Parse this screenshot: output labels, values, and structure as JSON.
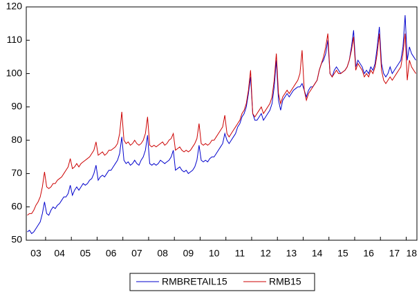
{
  "chart_data": {
    "type": "line",
    "categories": [
      null,
      null,
      null,
      null,
      "03",
      null,
      null,
      null,
      null,
      null,
      null,
      null,
      null,
      null,
      null,
      "04",
      null,
      null,
      null,
      null,
      null,
      null,
      null,
      null,
      null,
      null,
      null,
      "05",
      null,
      null,
      null,
      null,
      null,
      null,
      null,
      null,
      null,
      null,
      null,
      "06",
      null,
      null,
      null,
      null,
      null,
      null,
      null,
      null,
      null,
      null,
      null,
      "07",
      null,
      null,
      null,
      null,
      null,
      null,
      null,
      null,
      null,
      null,
      null,
      "08",
      null,
      null,
      null,
      null,
      null,
      null,
      null,
      null,
      null,
      null,
      null,
      "09",
      null,
      null,
      null,
      null,
      null,
      null,
      null,
      null,
      null,
      null,
      null,
      "10",
      null,
      null,
      null,
      null,
      null,
      null,
      null,
      null,
      null,
      null,
      null,
      "11",
      null,
      null,
      null,
      null,
      null,
      null,
      null,
      null,
      null,
      null,
      null,
      "12",
      null,
      null,
      null,
      null,
      null,
      null,
      null,
      null,
      null,
      null,
      null,
      "13",
      null,
      null,
      null,
      null,
      null,
      null,
      null,
      null,
      null,
      null,
      null,
      "14",
      null,
      null,
      null,
      null,
      null,
      null,
      null,
      null,
      null,
      null,
      null,
      "15",
      null,
      null,
      null,
      null,
      null,
      null,
      null,
      null,
      null,
      null,
      null,
      "16",
      null,
      null,
      null,
      null,
      null,
      null,
      null,
      null,
      null,
      null,
      null,
      "17",
      null,
      null,
      null,
      null,
      null,
      null,
      null,
      "18",
      null,
      null
    ],
    "series": [
      {
        "name": "RMBRETAIL15",
        "color": "#0000cc",
        "values": [
          52.5,
          53,
          52,
          52.5,
          53.5,
          54.5,
          55.5,
          58,
          61.5,
          58,
          57.5,
          59,
          60,
          59.5,
          60.5,
          61,
          62,
          63,
          63,
          64,
          66.5,
          63.5,
          65,
          66,
          65,
          66,
          67,
          66.5,
          67,
          68,
          68.5,
          70,
          72.5,
          68,
          69,
          69.5,
          69,
          70,
          71,
          71,
          72,
          73,
          74,
          76,
          81,
          74,
          73,
          73.5,
          72.5,
          73,
          74,
          73,
          72.5,
          74,
          75,
          77,
          81.5,
          73,
          72.5,
          73,
          72.5,
          73,
          74,
          73.5,
          73,
          73.5,
          74,
          75,
          77,
          71,
          71.5,
          72,
          71,
          70.5,
          71,
          70,
          70.5,
          71,
          72,
          74,
          78.5,
          74,
          73.5,
          74,
          73.5,
          74.5,
          75,
          75,
          76,
          77,
          78,
          79,
          82,
          80,
          79,
          80,
          81,
          82,
          84,
          85,
          87,
          88,
          90,
          94,
          99,
          88,
          86,
          86,
          87,
          88,
          86,
          87,
          88,
          89,
          91,
          96,
          104,
          92,
          89,
          92,
          93,
          94,
          93,
          94,
          95,
          95.5,
          96,
          96,
          97,
          95,
          93,
          95,
          96,
          96,
          97,
          98,
          101,
          103,
          104,
          106,
          110,
          100,
          99,
          101,
          102,
          101,
          100,
          100.5,
          101,
          102,
          104,
          108,
          113,
          102,
          104,
          103,
          102,
          100,
          101,
          100,
          102,
          101,
          103,
          108,
          114,
          103,
          100,
          99,
          100,
          102,
          100,
          101,
          102,
          103,
          104,
          108,
          117.5,
          104,
          108,
          106,
          105,
          104
        ]
      },
      {
        "name": "RMB15",
        "color": "#cc0000",
        "values": [
          57.5,
          58,
          58,
          59,
          60.5,
          61.5,
          63,
          66,
          70.5,
          66,
          65.5,
          66,
          67,
          67,
          68,
          68.5,
          69,
          70,
          71,
          72,
          74.5,
          71.5,
          72,
          73,
          72,
          73,
          73.5,
          74,
          74.5,
          75,
          76,
          77,
          79.5,
          75.5,
          76,
          76.5,
          75.5,
          76,
          77,
          77,
          77.5,
          78,
          79,
          82,
          88.5,
          80,
          79,
          79.5,
          78.5,
          79,
          80,
          79,
          78.5,
          79,
          80,
          82,
          87,
          78.5,
          78,
          78.5,
          78,
          78.5,
          79,
          79.5,
          78.5,
          79,
          80,
          80.5,
          82,
          77,
          77.5,
          78,
          77,
          76.5,
          77,
          76.5,
          77,
          78,
          79,
          80.5,
          85,
          79,
          78.5,
          79,
          78.5,
          79,
          80,
          80,
          81,
          82,
          83,
          84,
          87.5,
          82,
          81,
          82,
          83,
          84,
          85,
          86,
          88,
          89,
          91,
          95,
          101,
          88,
          87,
          88,
          89,
          90,
          88,
          89,
          90,
          91,
          93,
          98,
          106,
          94,
          91,
          93,
          94,
          95,
          94,
          95,
          96,
          97,
          98,
          100,
          107,
          95,
          92,
          94,
          95,
          96,
          97,
          98,
          101,
          103,
          105,
          108,
          112,
          100,
          99,
          100,
          101,
          100,
          100,
          100.5,
          101,
          102,
          104,
          107,
          111,
          101,
          103,
          102,
          101,
          99,
          100,
          99,
          101,
          100,
          102,
          106,
          112,
          101,
          98,
          97,
          98,
          99,
          98,
          99,
          100,
          101,
          102,
          106,
          112,
          98,
          104,
          102,
          101,
          100
        ]
      }
    ],
    "ylim": [
      50,
      120
    ],
    "yticks": [
      50,
      60,
      70,
      80,
      90,
      100,
      110,
      120
    ],
    "grid": false
  }
}
